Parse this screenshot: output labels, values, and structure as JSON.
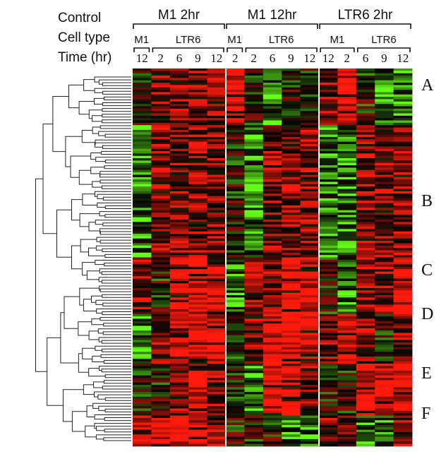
{
  "chart_data": {
    "type": "heatmap",
    "row_labels": {
      "control": "Control",
      "cell_type": "Cell type",
      "time": "Time (hr)"
    },
    "controls": [
      "M1 2hr",
      "M1 12hr",
      "LTR6 2hr"
    ],
    "cell_types": [
      {
        "control_index": 0,
        "label": "M1",
        "col_start": 0,
        "col_end": 0
      },
      {
        "control_index": 0,
        "label": "LTR6",
        "col_start": 1,
        "col_end": 4
      },
      {
        "control_index": 1,
        "label": "M1",
        "col_start": 5,
        "col_end": 5
      },
      {
        "control_index": 1,
        "label": "LTR6",
        "col_start": 6,
        "col_end": 9
      },
      {
        "control_index": 2,
        "label": "M1",
        "col_start": 10,
        "col_end": 11
      },
      {
        "control_index": 2,
        "label": "LTR6",
        "col_start": 12,
        "col_end": 14
      }
    ],
    "columns": [
      "12",
      "2",
      "6",
      "9",
      "12",
      "2",
      "2",
      "6",
      "9",
      "12",
      "12",
      "2",
      "6",
      "9",
      "12"
    ],
    "clusters": [
      {
        "label": "A",
        "row_start": 0.0,
        "row_end": 0.15,
        "pattern": [
          0,
          1,
          1,
          1,
          1,
          2,
          0,
          -1,
          0,
          0,
          1,
          2,
          0,
          -1,
          -1
        ]
      },
      {
        "label": "B",
        "row_start": 0.15,
        "row_end": 0.5,
        "pattern": [
          -1,
          1,
          1,
          1,
          1,
          0,
          -1,
          1,
          1,
          1,
          -1,
          -1,
          1,
          1,
          1
        ]
      },
      {
        "label": "C",
        "row_start": 0.5,
        "row_end": 0.65,
        "pattern": [
          1,
          0,
          2,
          2,
          2,
          -1,
          1,
          1,
          2,
          2,
          0,
          -1,
          1,
          1,
          2
        ]
      },
      {
        "label": "D",
        "row_start": 0.65,
        "row_end": 0.78,
        "pattern": [
          -1,
          1,
          2,
          2,
          2,
          0,
          1,
          2,
          2,
          2,
          1,
          2,
          1,
          0,
          1
        ]
      },
      {
        "label": "E",
        "row_start": 0.78,
        "row_end": 0.92,
        "pattern": [
          0,
          0,
          1,
          2,
          1,
          0,
          -1,
          2,
          2,
          1,
          0,
          0,
          2,
          2,
          2
        ]
      },
      {
        "label": "F",
        "row_start": 0.92,
        "row_end": 1.0,
        "pattern": [
          2,
          2,
          2,
          2,
          2,
          0,
          0,
          0,
          -1,
          -1,
          1,
          1,
          -1,
          -1,
          1
        ]
      }
    ],
    "color_scale": {
      "low": "#66ff1a",
      "mid": "#050505",
      "high": "#ff1a0d"
    },
    "value_range": [
      -2,
      2
    ],
    "rows": 160,
    "dendrogram": "hierarchical clustering tree (left)"
  }
}
